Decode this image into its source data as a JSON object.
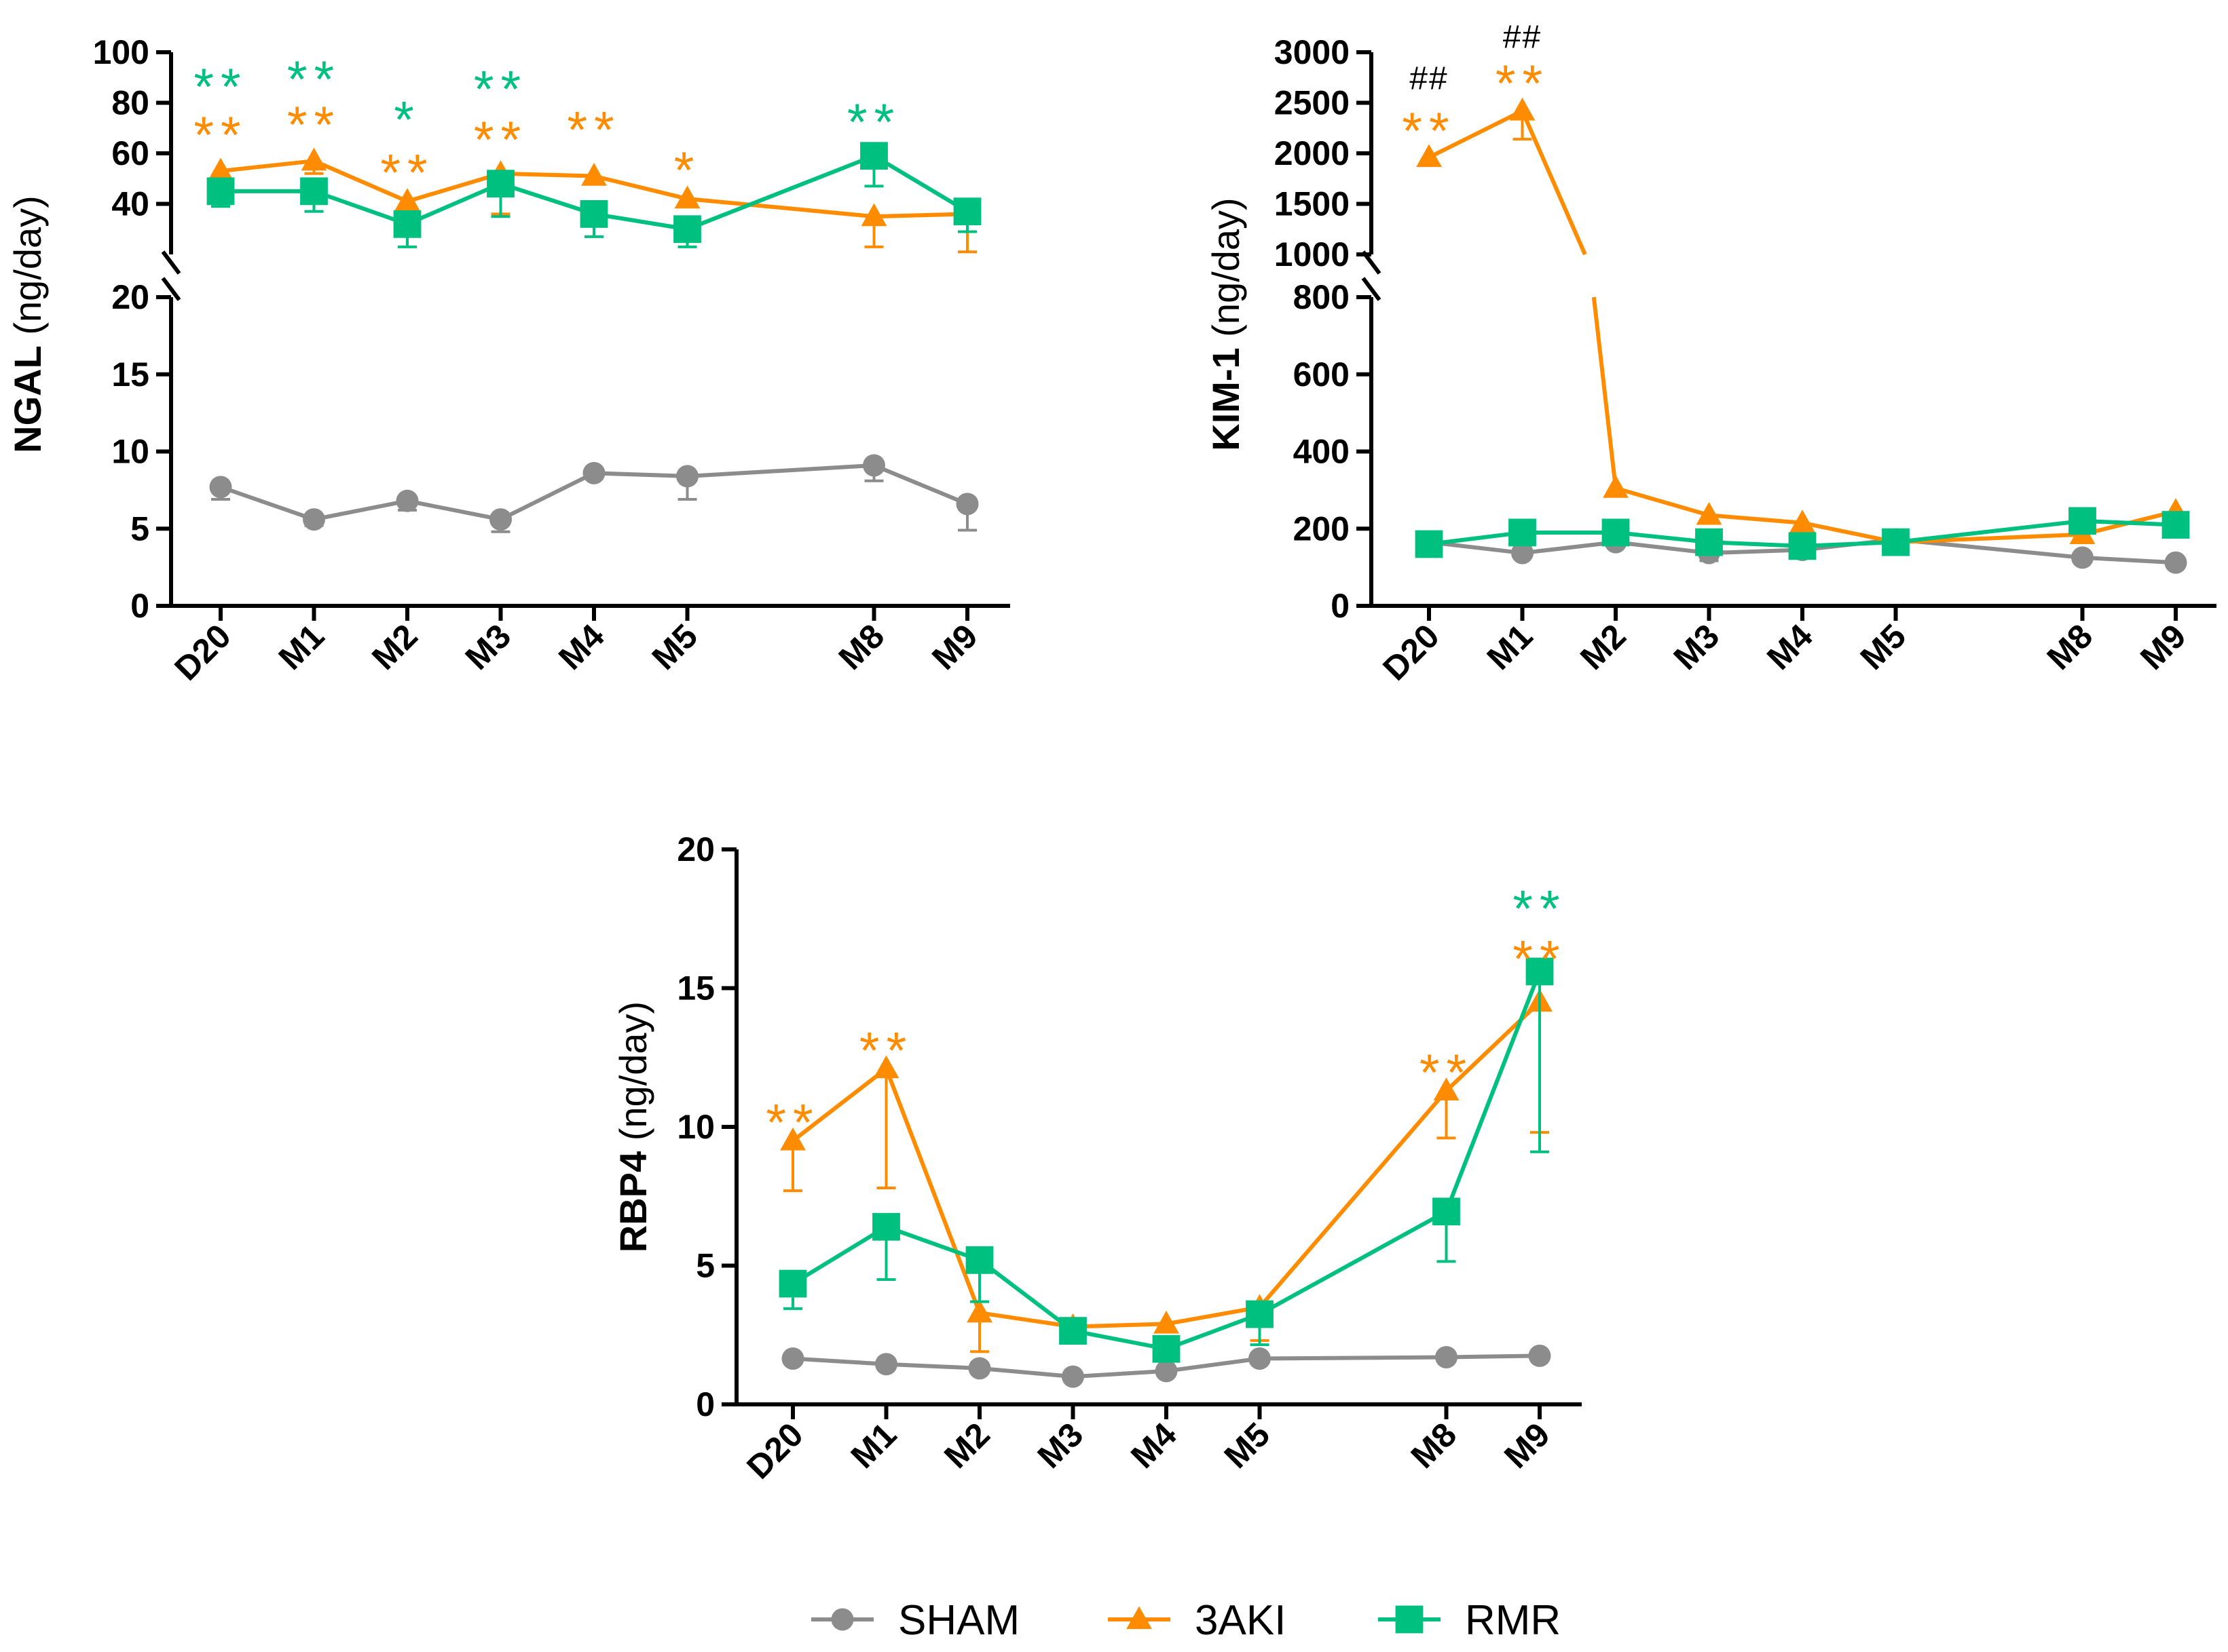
{
  "colors": {
    "sham": "#8c8c8c",
    "aki": "#ff8c00",
    "rmr": "#00c07f",
    "axis": "#000000",
    "hash": "#000000"
  },
  "legend": [
    {
      "key": "sham",
      "label": "SHAM",
      "marker": "circle"
    },
    {
      "key": "aki",
      "label": "3AKI",
      "marker": "triangle"
    },
    {
      "key": "rmr",
      "label": "RMR",
      "marker": "square"
    }
  ],
  "chart_data": [
    {
      "id": "ngal",
      "type": "line",
      "ylabel_bold": "NGAL",
      "ylabel_rest": " (ng/day)",
      "categories": [
        "D20",
        "M1",
        "M2",
        "M3",
        "M4",
        "M5",
        "M8",
        "M9"
      ],
      "x_months": [
        0,
        1,
        2,
        3,
        4,
        5,
        7,
        8
      ],
      "axis_break": true,
      "lower_ylim": [
        0,
        20
      ],
      "lower_ticks": [
        0,
        5,
        10,
        15,
        20
      ],
      "upper_ylim": [
        20,
        100
      ],
      "upper_ticks": [
        20,
        40,
        60,
        80,
        100
      ],
      "series": [
        {
          "key": "sham",
          "name": "SHAM",
          "values": [
            7.7,
            5.6,
            6.8,
            5.6,
            8.6,
            8.4,
            9.1,
            6.6
          ],
          "errors": [
            0.8,
            0.4,
            0.6,
            0.8,
            0.3,
            1.5,
            1.0,
            1.7
          ]
        },
        {
          "key": "aki",
          "name": "3AKI",
          "values": [
            53,
            57,
            41,
            52,
            51,
            42,
            35,
            36
          ],
          "errors": [
            0,
            5,
            0,
            16,
            0,
            0,
            12,
            15
          ]
        },
        {
          "key": "rmr",
          "name": "RMR",
          "values": [
            45,
            45,
            32,
            48,
            36,
            30,
            59,
            37
          ],
          "errors": [
            6,
            8,
            9,
            13,
            9,
            7,
            12,
            8
          ]
        }
      ],
      "annotations": [
        {
          "xi": 0,
          "series": "rmr",
          "text": "**",
          "value": 89
        },
        {
          "xi": 0,
          "series": "aki",
          "text": "**",
          "value": 70
        },
        {
          "xi": 1,
          "series": "rmr",
          "text": "**",
          "value": 92
        },
        {
          "xi": 1,
          "series": "aki",
          "text": "**",
          "value": 74
        },
        {
          "xi": 2,
          "series": "rmr",
          "text": "*",
          "value": 76
        },
        {
          "xi": 2,
          "series": "aki",
          "text": "**",
          "value": 55
        },
        {
          "xi": 3,
          "series": "rmr",
          "text": "**",
          "value": 88
        },
        {
          "xi": 3,
          "series": "aki",
          "text": "**",
          "value": 68
        },
        {
          "xi": 4,
          "series": "aki",
          "text": "**",
          "value": 72
        },
        {
          "xi": 5,
          "series": "aki",
          "text": "*",
          "value": 56
        },
        {
          "xi": 6,
          "series": "rmr",
          "text": "**",
          "value": 75
        }
      ]
    },
    {
      "id": "kim1",
      "type": "line",
      "ylabel_bold": "KIM-1",
      "ylabel_rest": " (ng/day)",
      "categories": [
        "D20",
        "M1",
        "M2",
        "M3",
        "M4",
        "M5",
        "M8",
        "M9"
      ],
      "x_months": [
        0,
        1,
        2,
        3,
        4,
        5,
        7,
        8
      ],
      "axis_break": true,
      "lower_ylim": [
        0,
        800
      ],
      "lower_ticks": [
        0,
        200,
        400,
        600,
        800
      ],
      "upper_ylim": [
        1000,
        3000
      ],
      "upper_ticks": [
        1000,
        1500,
        2000,
        2500,
        3000
      ],
      "series": [
        {
          "key": "sham",
          "name": "SHAM",
          "values": [
            165,
            137,
            165,
            137,
            145,
            172,
            125,
            112
          ],
          "errors": [
            0,
            0,
            0,
            20,
            0,
            0,
            0,
            0
          ]
        },
        {
          "key": "aki",
          "name": "3AKI",
          "values": [
            1960,
            2420,
            305,
            235,
            215,
            165,
            185,
            245
          ],
          "errors": [
            0,
            280,
            0,
            0,
            0,
            0,
            0,
            0
          ]
        },
        {
          "key": "rmr",
          "name": "RMR",
          "values": [
            160,
            190,
            190,
            165,
            155,
            165,
            220,
            210
          ],
          "errors": [
            0,
            0,
            0,
            0,
            0,
            0,
            0,
            0
          ]
        }
      ],
      "annotations": [
        {
          "xi": 0,
          "series": "hash",
          "text": "##",
          "value": 2740
        },
        {
          "xi": 0,
          "series": "aki",
          "text": "**",
          "value": 2290
        },
        {
          "xi": 1,
          "series": "hash",
          "text": "##",
          "value": 3150
        },
        {
          "xi": 1,
          "series": "aki",
          "text": "**",
          "value": 2760
        }
      ]
    },
    {
      "id": "rbp4",
      "type": "line",
      "ylabel_bold": "RBP4",
      "ylabel_rest": " (ng/day)",
      "categories": [
        "D20",
        "M1",
        "M2",
        "M3",
        "M4",
        "M5",
        "M8",
        "M9"
      ],
      "x_months": [
        0,
        1,
        2,
        3,
        4,
        5,
        7,
        8
      ],
      "axis_break": false,
      "ylim": [
        0,
        20
      ],
      "ticks": [
        0,
        5,
        10,
        15,
        20
      ],
      "series": [
        {
          "key": "sham",
          "name": "SHAM",
          "values": [
            1.65,
            1.45,
            1.3,
            1.0,
            1.2,
            1.65,
            1.7,
            1.75
          ],
          "errors": [
            0,
            0,
            0,
            0,
            0,
            0,
            0,
            0
          ]
        },
        {
          "key": "aki",
          "name": "3AKI",
          "values": [
            9.5,
            12.1,
            3.3,
            2.8,
            2.9,
            3.5,
            11.3,
            14.5
          ],
          "errors": [
            1.8,
            4.3,
            1.4,
            0.5,
            0,
            1.2,
            1.7,
            4.7
          ]
        },
        {
          "key": "rmr",
          "name": "RMR",
          "values": [
            4.35,
            6.4,
            5.2,
            2.65,
            2.0,
            3.25,
            6.95,
            15.6
          ],
          "errors": [
            0.9,
            1.9,
            1.5,
            0,
            0,
            1.1,
            1.8,
            6.5
          ]
        }
      ],
      "annotations": [
        {
          "xi": 0,
          "series": "aki",
          "text": "**",
          "value": 10.4
        },
        {
          "xi": 1,
          "series": "aki",
          "text": "**",
          "value": 13.0
        },
        {
          "xi": 6,
          "series": "aki",
          "text": "**",
          "value": 12.2
        },
        {
          "xi": 7,
          "series": "rmr",
          "text": "**",
          "value": 18.1
        },
        {
          "xi": 7,
          "series": "aki",
          "text": "**",
          "value": 16.3
        }
      ]
    }
  ]
}
